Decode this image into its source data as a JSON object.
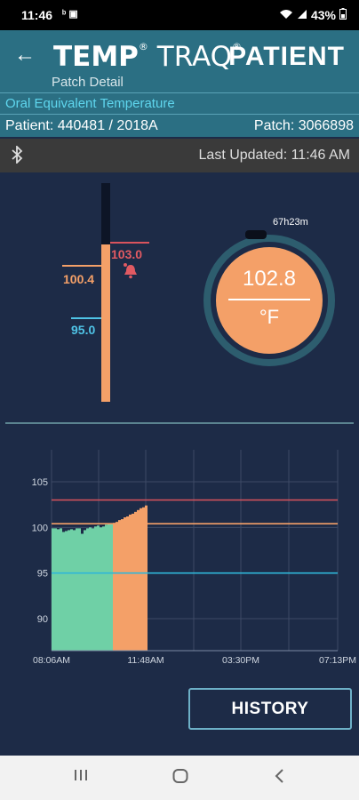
{
  "status_bar": {
    "time": "11:46",
    "battery": "43%"
  },
  "header": {
    "logo_temp": "TEMP",
    "logo_traq": "TRAQ",
    "logo_reg": "®",
    "title": "PATIENT",
    "subtitle": "Patch Detail"
  },
  "temp_type": "Oral Equivalent Temperature",
  "patient_label": "Patient: 440481 / 2018A",
  "patch_label": "Patch: 3066898",
  "last_updated": "Last Updated: 11:46 AM",
  "thermometer": {
    "high_alarm": "103.0",
    "upper_threshold": "100.4",
    "lower_threshold": "95.0",
    "current_fraction": 0.72
  },
  "dial": {
    "value": "102.8",
    "unit": "°F",
    "elapsed": "67h23m"
  },
  "chart_data": {
    "type": "bar",
    "title": "",
    "xlabel": "",
    "ylabel": "",
    "x_tick_labels": [
      "08:06AM",
      "11:48AM",
      "03:30PM",
      "07:13PM"
    ],
    "y_tick_labels": [
      "90",
      "95",
      "100",
      "105"
    ],
    "ylim": [
      86.5,
      108.5
    ],
    "reference_lines": [
      {
        "value": 103.0,
        "color": "#d9535d"
      },
      {
        "value": 100.4,
        "color": "#f4a068"
      },
      {
        "value": 95.0,
        "color": "#2fb6d8"
      }
    ],
    "series": [
      {
        "color": "#6fd0a6",
        "values": [
          99.9,
          99.9,
          99.8,
          99.9,
          99.5,
          99.6,
          99.7,
          99.8,
          99.7,
          99.9,
          99.9,
          99.3,
          99.7,
          99.9,
          100.0,
          99.9,
          100.1,
          100.2,
          100.0,
          100.1,
          100.3,
          100.4,
          100.4
        ]
      },
      {
        "color": "#f4a068",
        "values": [
          100.5,
          100.6,
          100.8,
          100.9,
          101.1,
          101.2,
          101.4,
          101.5,
          101.7,
          101.9,
          102.1,
          102.2,
          102.4
        ]
      }
    ],
    "grid": true
  },
  "history_button": "HISTORY",
  "colors": {
    "background": "#1d2b47",
    "header": "#2b6f83",
    "accent_cyan": "#5fd6ee",
    "orange": "#f4a068",
    "red": "#e15a62",
    "blue": "#4fc3e6"
  }
}
